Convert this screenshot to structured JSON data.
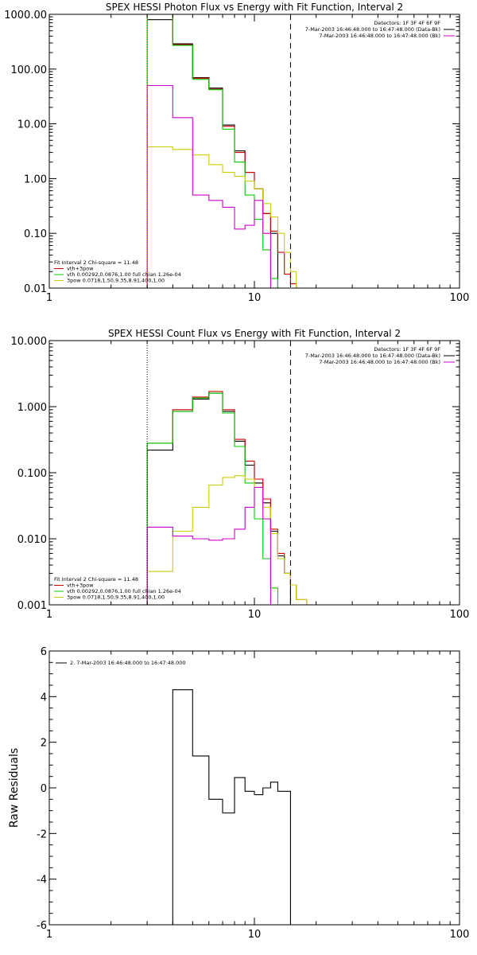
{
  "chart_data": [
    {
      "type": "line",
      "title": "SPEX HESSI Photon Flux vs Energy with Fit Function, Interval 2",
      "xscale": "log",
      "yscale": "log",
      "xlim": [
        1,
        100
      ],
      "ylim": [
        0.01,
        1000
      ],
      "x_ticks": [
        1,
        10,
        100
      ],
      "x_tick_labels": [
        "1",
        "10",
        "100"
      ],
      "y_ticks": [
        0.01,
        0.1,
        1,
        10,
        100,
        1000
      ],
      "y_tick_labels": [
        "0.01",
        "0.10",
        "1.00",
        "10.00",
        "100.00",
        "1000.00"
      ],
      "legend_top": {
        "header": "Detectors: 1F 3F 4F 6F 9F",
        "entries": [
          {
            "label": "7-Mar-2003 16:46:48.000 to 16:47:48.000 (Data-Bk)",
            "color": "#000000"
          },
          {
            "label": "7-Mar-2003 16:46:48.000 to 16:47:48.000 (Bk)",
            "color": "#cc00cc"
          }
        ]
      },
      "legend_bottom": {
        "header": "Fit Interval 2   Chi-square = 11.48",
        "entries": [
          {
            "label": "vth+3pow",
            "color": "#cc0000"
          },
          {
            "label": "vth 0.00292,0.0876,1.00  full chian 1.26e-04",
            "color": "#00cc00"
          },
          {
            "label": "3pow 0.0718,1.50,9.35,8.91,400,1.00",
            "color": "#cccc00"
          }
        ]
      },
      "vlines": [
        {
          "x": 3,
          "style": "dotted",
          "color": "#ff8c00"
        },
        {
          "x": 15,
          "style": "dashed",
          "color": "#000000"
        }
      ],
      "x_edges": [
        3,
        4,
        5,
        6,
        7,
        8,
        9,
        10,
        11,
        12,
        13,
        14,
        15,
        16,
        18
      ],
      "series": [
        {
          "name": "Data-Bk",
          "color": "#000000",
          "values": [
            800,
            290,
            70,
            45,
            9.5,
            3.2,
            1.3,
            0.65,
            0.23,
            0.1,
            null,
            null,
            null,
            null
          ]
        },
        {
          "name": "vth+3pow",
          "color": "#cc0000",
          "values": [
            1000,
            280,
            68,
            43,
            9,
            3,
            1.3,
            0.65,
            0.23,
            0.11,
            0.045,
            0.018,
            0.012,
            0.01
          ]
        },
        {
          "name": "vth",
          "color": "#00cc00",
          "values": [
            1000,
            270,
            65,
            42,
            8,
            2,
            0.5,
            0.18,
            0.05,
            0.015,
            null,
            null,
            null,
            null
          ]
        },
        {
          "name": "3pow",
          "color": "#cccc00",
          "values": [
            3.8,
            3.4,
            2.7,
            1.8,
            1.3,
            1.1,
            0.9,
            0.65,
            0.35,
            0.2,
            0.1,
            0.045,
            0.02,
            0.01
          ]
        },
        {
          "name": "Bk",
          "color": "#cc00cc",
          "values": [
            50,
            13,
            0.5,
            0.4,
            0.3,
            0.12,
            0.14,
            0.4,
            0.1,
            null,
            null,
            null,
            null,
            null
          ]
        }
      ]
    },
    {
      "type": "line",
      "title": "SPEX HESSI Count Flux vs Energy with Fit Function, Interval 2",
      "xscale": "log",
      "yscale": "log",
      "xlim": [
        1,
        100
      ],
      "ylim": [
        0.001,
        10
      ],
      "x_ticks": [
        1,
        10,
        100
      ],
      "x_tick_labels": [
        "1",
        "10",
        "100"
      ],
      "y_ticks": [
        0.001,
        0.01,
        0.1,
        1,
        10
      ],
      "y_tick_labels": [
        "0.001",
        "0.010",
        "0.100",
        "1.000",
        "10.000"
      ],
      "legend_top": {
        "header": "Detectors: 1F 3F 4F 6F 9F",
        "entries": [
          {
            "label": "7-Mar-2003 16:46:48.000 to 16:47:48.000 (Data-Bk)",
            "color": "#000000"
          },
          {
            "label": "7-Mar-2003 16:46:48.000 to 16:47:48.000 (Bk)",
            "color": "#cc00cc"
          }
        ]
      },
      "legend_bottom": {
        "header": "Fit Interval 2   Chi-square = 11.48",
        "entries": [
          {
            "label": "vth+3pow",
            "color": "#cc0000"
          },
          {
            "label": "vth 0.00292,0.0876,1.00  full chian 1.26e-04",
            "color": "#00cc00"
          },
          {
            "label": "3pow 0.0718,1.50,9.35,8.91,400,1.00",
            "color": "#cccc00"
          }
        ]
      },
      "vlines": [
        {
          "x": 3,
          "style": "dotted",
          "color": "#000000"
        },
        {
          "x": 15,
          "style": "dashed",
          "color": "#000000"
        }
      ],
      "x_edges": [
        3,
        4,
        5,
        6,
        7,
        8,
        9,
        10,
        11,
        12,
        13,
        14,
        15,
        16,
        18
      ],
      "series": [
        {
          "name": "Data-Bk",
          "color": "#000000",
          "values": [
            0.22,
            0.85,
            1.3,
            1.6,
            0.85,
            0.3,
            0.13,
            0.07,
            0.035,
            0.013,
            0.0055,
            0.003,
            null,
            null
          ]
        },
        {
          "name": "vth+3pow",
          "color": "#cc0000",
          "values": [
            0.28,
            0.9,
            1.4,
            1.7,
            0.9,
            0.32,
            0.15,
            0.08,
            0.04,
            0.014,
            0.006,
            0.003,
            0.002,
            0.0012
          ]
        },
        {
          "name": "vth",
          "color": "#00cc00",
          "values": [
            0.28,
            0.85,
            1.35,
            1.6,
            0.8,
            0.25,
            0.07,
            0.02,
            0.005,
            0.0018,
            null,
            null,
            null,
            null
          ]
        },
        {
          "name": "3pow",
          "color": "#cccc00",
          "values": [
            0.0032,
            0.013,
            0.03,
            0.065,
            0.085,
            0.09,
            0.08,
            0.06,
            0.03,
            0.012,
            0.005,
            0.003,
            0.002,
            0.0012
          ]
        },
        {
          "name": "Bk",
          "color": "#cc00cc",
          "values": [
            0.015,
            0.011,
            0.01,
            0.0095,
            0.01,
            0.014,
            0.03,
            0.06,
            0.02,
            null,
            null,
            null,
            null,
            null
          ]
        }
      ]
    },
    {
      "type": "line",
      "title": "",
      "xscale": "log",
      "yscale": "linear",
      "xlim": [
        1,
        100
      ],
      "ylim": [
        -6,
        6
      ],
      "ylabel": "Raw Residuals",
      "x_ticks": [
        1,
        10,
        100
      ],
      "x_tick_labels": [
        "1",
        "10",
        "100"
      ],
      "y_ticks": [
        -6,
        -4,
        -2,
        0,
        2,
        4,
        6
      ],
      "y_tick_labels": [
        "-6",
        "-4",
        "-2",
        "0",
        "2",
        "4",
        "6"
      ],
      "legend_top": {
        "header": "",
        "entries": [
          {
            "label": "2. 7-Mar-2003 16:46:48.000 to 16:47:48.000",
            "color": "#000000"
          }
        ]
      },
      "x_edges": [
        3,
        4,
        5,
        6,
        7,
        8,
        9,
        10,
        11,
        12,
        13,
        14,
        15
      ],
      "series": [
        {
          "name": "residuals",
          "color": "#000000",
          "values": [
            -6,
            4.3,
            1.4,
            -0.5,
            -1.1,
            0.45,
            -0.15,
            -0.3,
            0,
            0.25,
            -0.15,
            -0.15
          ]
        }
      ]
    }
  ]
}
